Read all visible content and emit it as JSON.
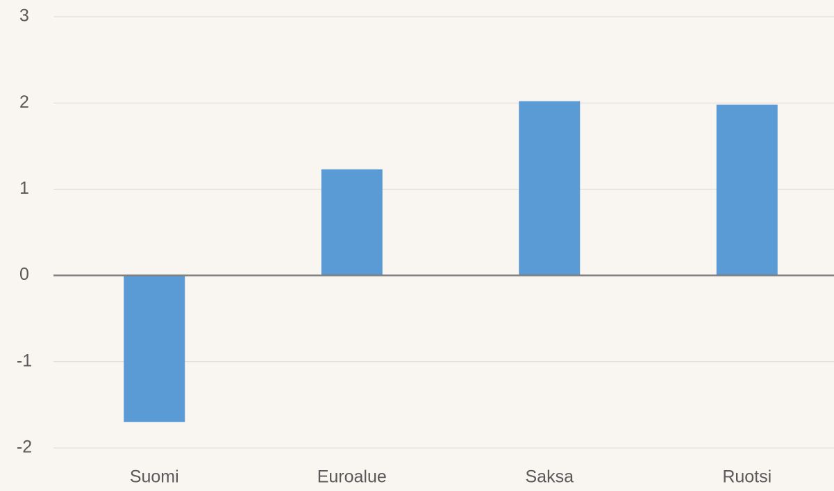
{
  "chart_data": {
    "type": "bar",
    "categories": [
      "Suomi",
      "Euroalue",
      "Saksa",
      "Ruotsi"
    ],
    "values": [
      -1.7,
      1.23,
      2.02,
      1.98
    ],
    "color": "#5b9bd5",
    "ylim": [
      -2,
      3
    ],
    "yticks": [
      -2,
      -1,
      0,
      1,
      2,
      3
    ],
    "grid": true
  }
}
